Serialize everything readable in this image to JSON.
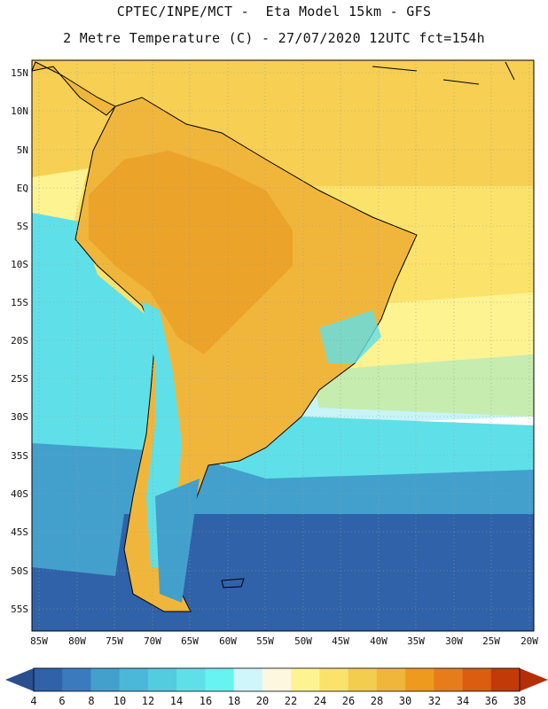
{
  "header": {
    "line1": "CPTEC/INPE/MCT -  Eta Model 15km - GFS",
    "line2": "2 Metre Temperature (C) - 27/07/2020 12UTC fct=154h"
  },
  "axes": {
    "lat_labels": [
      "15N",
      "10N",
      "5N",
      "EQ",
      "5S",
      "10S",
      "15S",
      "20S",
      "25S",
      "30S",
      "35S",
      "40S",
      "45S",
      "50S",
      "55S"
    ],
    "lon_labels": [
      "85W",
      "80W",
      "75W",
      "70W",
      "65W",
      "60W",
      "55W",
      "50W",
      "45W",
      "40W",
      "35W",
      "30W",
      "25W",
      "20W"
    ]
  },
  "colorbar": {
    "labels": [
      "4",
      "6",
      "8",
      "10",
      "12",
      "14",
      "16",
      "18",
      "20",
      "22",
      "24",
      "26",
      "28",
      "30",
      "32",
      "34",
      "36",
      "38"
    ],
    "colors": [
      "#2f62a8",
      "#3b7bbd",
      "#43a0cc",
      "#4cb8d9",
      "#53ccdf",
      "#5fe0e8",
      "#66f3f1",
      "#cff6fb",
      "#fdf7e0",
      "#fdf391",
      "#fbe36b",
      "#f3cd4e",
      "#f0b63c",
      "#ee9a1e",
      "#e77d1a",
      "#da5d10",
      "#c23a08"
    ],
    "under_color": "#2a4f8f",
    "over_color": "#b42f05"
  },
  "colors": {
    "ocean_north": "#f6cf53",
    "ocean_tropic": "#fbe36b",
    "ocean_sub": "#fdf391",
    "ocean_mid": "#5fe0e8",
    "ocean_cool": "#43a0cc",
    "ocean_south": "#2f62a8",
    "land_hot": "#eba32a",
    "land_warm": "#f0b63c",
    "coast_line": "#000000",
    "grid_line": "#9a9a9a"
  }
}
